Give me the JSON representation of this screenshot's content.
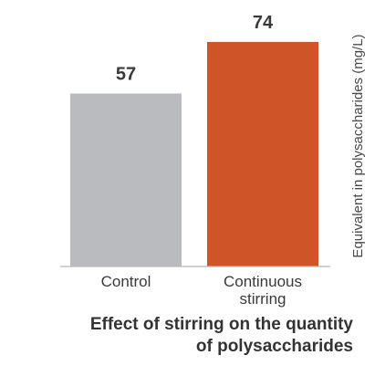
{
  "chart_data": {
    "type": "bar",
    "categories": [
      [
        "Control"
      ],
      [
        "Continuous",
        "stirring"
      ]
    ],
    "values": [
      57,
      74
    ],
    "value_labels": [
      "57",
      "74"
    ],
    "colors": [
      "#babbbf",
      "#cf5427"
    ],
    "title_lines": [
      "Effect of stirring on the quantity",
      "of polysaccharides"
    ],
    "xlabel": "",
    "ylabel": "Equivalent in polysaccharides (mg/L)",
    "ylim": [
      0,
      80
    ],
    "grid": false,
    "legend": "none"
  }
}
